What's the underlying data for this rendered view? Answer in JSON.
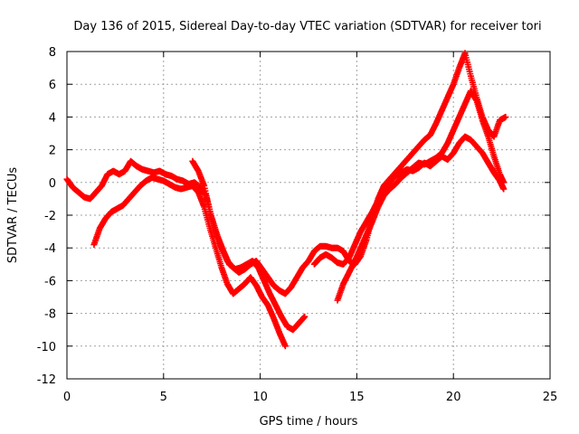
{
  "chart_data": {
    "type": "scatter",
    "title": "Day 136 of 2015, Sidereal Day-to-day VTEC variation (SDTVAR) for receiver tori",
    "xlabel": "GPS time / hours",
    "ylabel": "SDTVAR / TECUs",
    "xlim": [
      0,
      25
    ],
    "ylim": [
      -12,
      8
    ],
    "x_ticks": [
      0,
      5,
      10,
      15,
      20,
      25
    ],
    "y_ticks": [
      -12,
      -10,
      -8,
      -6,
      -4,
      -2,
      0,
      2,
      4,
      6,
      8
    ],
    "grid": true,
    "legend": "none",
    "marker": "plus",
    "color": "#ff0000",
    "series": [
      {
        "x": [
          0.0,
          0.3,
          0.6,
          0.9,
          1.2,
          1.5,
          1.8,
          2.1,
          2.4,
          2.7,
          3.0,
          3.3,
          3.6,
          3.9,
          4.2,
          4.5,
          4.8,
          5.1,
          5.4,
          5.7,
          6.0,
          6.3,
          6.6,
          6.9,
          7.2,
          7.5,
          7.8,
          8.1,
          8.4,
          8.7,
          9.0,
          9.3,
          9.6,
          9.9,
          10.2,
          10.5,
          10.8,
          11.1,
          11.4,
          11.7,
          12.0,
          12.3
        ],
        "y": [
          0.2,
          -0.3,
          -0.6,
          -0.9,
          -1.0,
          -0.6,
          -0.2,
          0.5,
          0.7,
          0.5,
          0.7,
          1.3,
          1.0,
          0.8,
          0.7,
          0.6,
          0.7,
          0.5,
          0.4,
          0.2,
          0.1,
          -0.1,
          0.0,
          -0.3,
          -0.8,
          -2.2,
          -3.3,
          -4.2,
          -5.0,
          -5.3,
          -5.2,
          -5.0,
          -4.8,
          -5.2,
          -6.0,
          -6.8,
          -7.5,
          -8.2,
          -8.8,
          -9.0,
          -8.6,
          -8.2
        ]
      },
      {
        "x": [
          1.4,
          1.7,
          2.0,
          2.3,
          2.6,
          2.9,
          3.2,
          3.5,
          3.8,
          4.1,
          4.4,
          4.7,
          5.0,
          5.3,
          5.6,
          5.9,
          6.2,
          6.5,
          6.8,
          7.1,
          7.4,
          7.7,
          8.0,
          8.3,
          8.6,
          8.9,
          9.2,
          9.5,
          9.8,
          10.1,
          10.4,
          10.7,
          11.0,
          11.3
        ],
        "y": [
          -3.8,
          -2.8,
          -2.2,
          -1.8,
          -1.6,
          -1.4,
          -1.0,
          -0.6,
          -0.2,
          0.1,
          0.3,
          0.2,
          0.1,
          -0.1,
          -0.3,
          -0.4,
          -0.3,
          -0.2,
          -0.6,
          -1.5,
          -2.8,
          -4.0,
          -5.2,
          -6.2,
          -6.8,
          -6.5,
          -6.2,
          -5.8,
          -6.3,
          -7.0,
          -7.5,
          -8.3,
          -9.2,
          -10.0
        ]
      },
      {
        "x": [
          6.5,
          6.8,
          7.1,
          7.4,
          7.7,
          8.0,
          8.3,
          8.6,
          8.9,
          9.2,
          9.5,
          9.8,
          10.1,
          10.4,
          10.7,
          11.0,
          11.3,
          11.6,
          11.9,
          12.2,
          12.5,
          12.8,
          13.1,
          13.4,
          13.7,
          14.0,
          14.3,
          14.6,
          14.9,
          15.2,
          15.5,
          15.8,
          16.1,
          16.4,
          16.7,
          17.0,
          17.3,
          17.6,
          17.9,
          18.2,
          18.5,
          18.8,
          19.1,
          19.4,
          19.7,
          20.0,
          20.3,
          20.6,
          20.9,
          21.2,
          21.5,
          21.8,
          22.1,
          22.4,
          22.7
        ],
        "y": [
          1.3,
          0.7,
          -0.2,
          -1.8,
          -3.0,
          -4.0,
          -4.8,
          -5.2,
          -5.5,
          -5.3,
          -5.0,
          -4.8,
          -5.3,
          -5.8,
          -6.3,
          -6.6,
          -6.8,
          -6.4,
          -5.8,
          -5.2,
          -4.8,
          -4.2,
          -3.9,
          -3.9,
          -4.0,
          -4.0,
          -4.2,
          -4.8,
          -5.0,
          -4.5,
          -3.5,
          -2.2,
          -1.0,
          -0.2,
          0.2,
          0.6,
          1.0,
          1.4,
          1.8,
          2.2,
          2.6,
          2.9,
          3.6,
          4.4,
          5.2,
          6.0,
          7.0,
          7.9,
          6.5,
          5.2,
          4.0,
          3.2,
          2.8,
          3.8,
          4.0
        ]
      },
      {
        "x": [
          14.0,
          14.3,
          14.6,
          14.9,
          15.2,
          15.5,
          15.8,
          16.1,
          16.4,
          16.7,
          17.0,
          17.3,
          17.6,
          17.9,
          18.2,
          18.5,
          18.8,
          19.1,
          19.4,
          19.7,
          20.0,
          20.3,
          20.6,
          20.9,
          21.2,
          21.5,
          21.8,
          22.1,
          22.4,
          22.6
        ],
        "y": [
          -7.2,
          -6.2,
          -5.5,
          -4.8,
          -4.0,
          -3.2,
          -2.4,
          -1.5,
          -0.8,
          -0.4,
          -0.1,
          0.3,
          0.6,
          0.9,
          1.2,
          1.1,
          1.3,
          1.5,
          1.8,
          2.4,
          3.2,
          4.0,
          4.8,
          5.6,
          5.0,
          3.8,
          2.8,
          1.6,
          0.5,
          0.0
        ]
      },
      {
        "x": [
          12.8,
          13.1,
          13.4,
          13.7,
          14.0,
          14.3,
          14.6,
          14.9,
          15.2,
          15.5,
          15.8,
          16.1,
          16.4,
          16.7,
          17.0,
          17.3,
          17.6,
          17.9,
          18.2,
          18.5,
          18.8,
          19.1,
          19.4,
          19.7,
          20.0,
          20.3,
          20.6,
          20.9,
          21.2,
          21.5,
          21.8,
          22.1,
          22.4,
          22.6
        ],
        "y": [
          -5.0,
          -4.6,
          -4.4,
          -4.6,
          -4.9,
          -5.0,
          -4.6,
          -3.8,
          -3.0,
          -2.4,
          -1.8,
          -1.1,
          -0.5,
          0.0,
          0.4,
          0.6,
          0.8,
          0.7,
          0.9,
          1.2,
          1.0,
          1.3,
          1.6,
          1.4,
          1.8,
          2.4,
          2.8,
          2.6,
          2.2,
          1.8,
          1.2,
          0.6,
          0.1,
          -0.4
        ]
      }
    ]
  }
}
